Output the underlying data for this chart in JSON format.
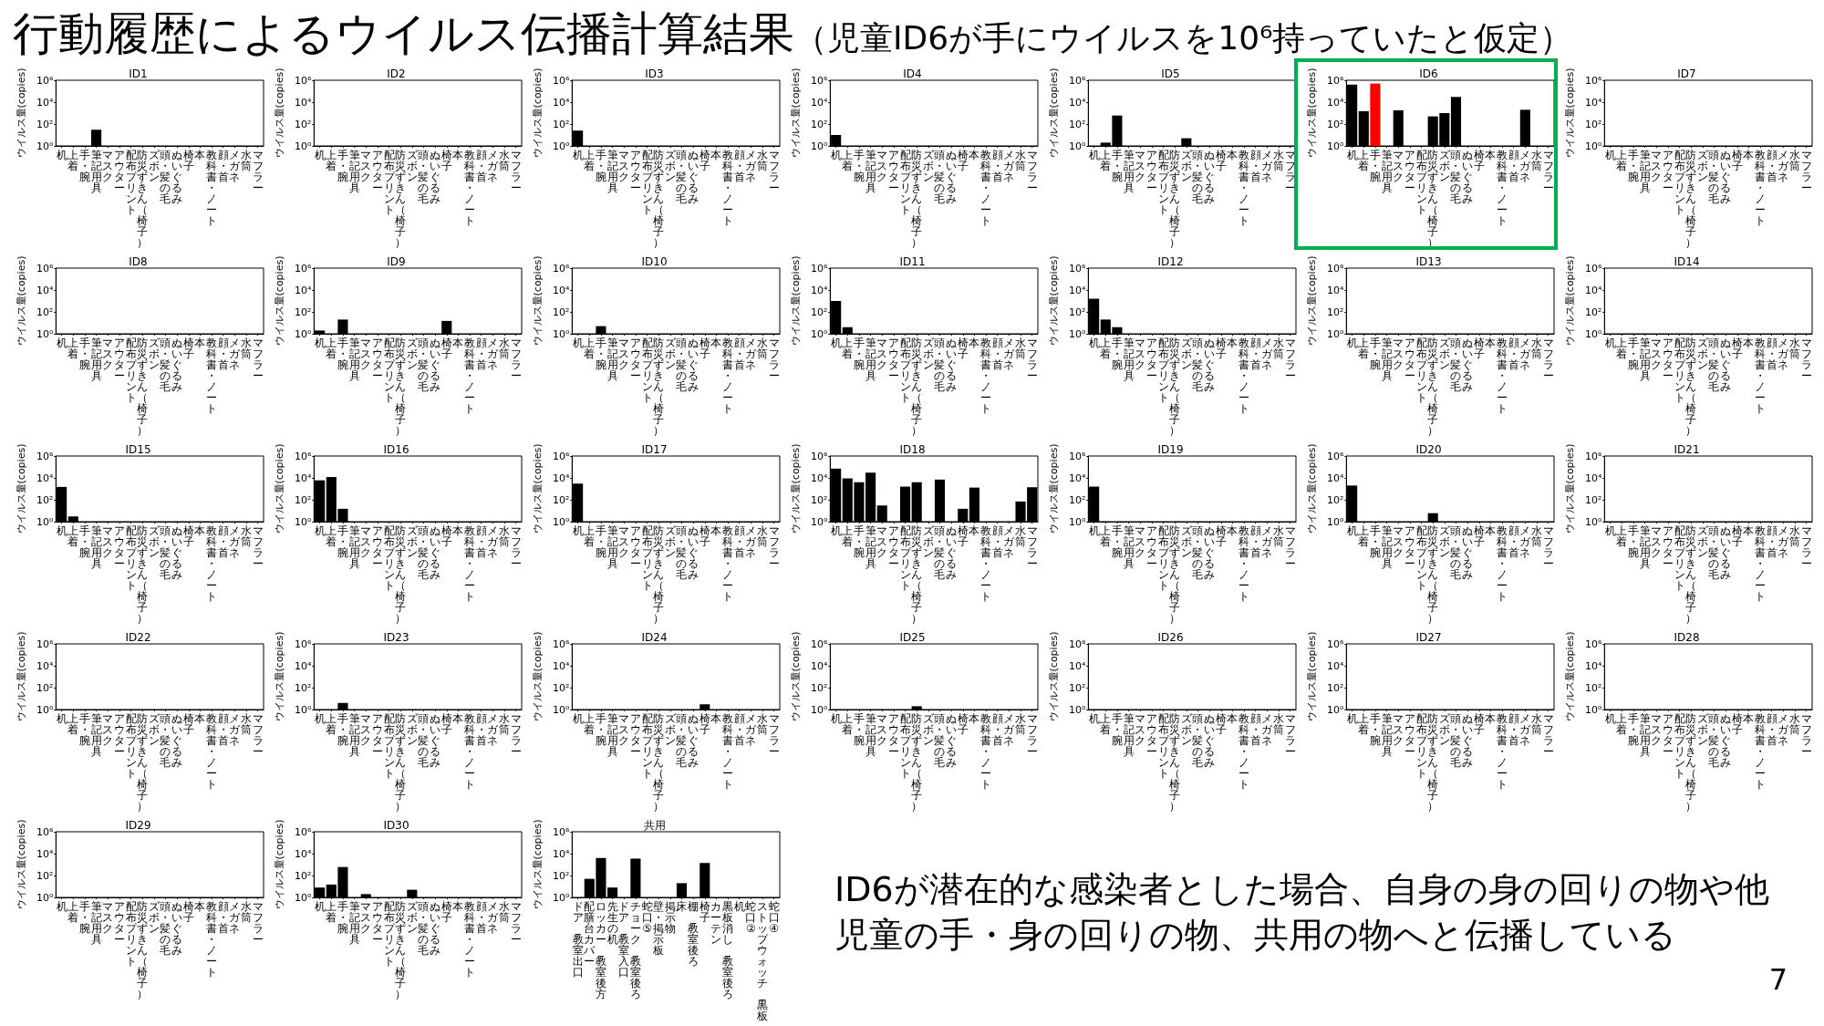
{
  "chart_data": [
    {
      "type": "other",
      "title": "行動履歴によるウイルス伝播計算結果",
      "subtitle": "（児童ID6が手にウイルスを10⁶持っていたと仮定）",
      "annotations": [
        "ID6が潜在的な感染者とした場合、自身の身の回りの物や他児童の手・身の回りの物、共用の物へと伝播している",
        "7"
      ]
    },
    {
      "type": "bar",
      "title": "ID1",
      "ylabel": "ウイルス量(copies)",
      "log": true,
      "color": "#000000",
      "ylim": [
        1,
        1000000
      ],
      "yticks": [
        {
          "value": 1,
          "label": "10⁰"
        },
        {
          "value": 100,
          "label": "10²"
        },
        {
          "value": 10000,
          "label": "10⁴"
        },
        {
          "value": 1000000,
          "label": "10⁶"
        }
      ],
      "categories": [
        "机",
        "上着",
        "手・腕",
        "筆記用具",
        "マスク",
        "アウター",
        "配布プリント",
        "防災ずきん（椅子）",
        "ズボン",
        "頭・髪の毛",
        "ぬいぐるみ",
        "椅子",
        "本",
        "教科書・ノート",
        "顔・首",
        "メガネ",
        "水筒",
        "マフラー"
      ],
      "values": [
        null,
        null,
        null,
        30,
        null,
        null,
        null,
        null,
        null,
        null,
        null,
        null,
        null,
        null,
        null,
        null,
        null,
        null
      ]
    },
    {
      "type": "bar",
      "title": "ID2",
      "ylabel": "ウイルス量(copies)",
      "log": true,
      "color": "#000000",
      "ylim": [
        1,
        1000000
      ],
      "yticks": [
        {
          "value": 1,
          "label": "10⁰"
        },
        {
          "value": 100,
          "label": "10²"
        },
        {
          "value": 10000,
          "label": "10⁴"
        },
        {
          "value": 1000000,
          "label": "10⁶"
        }
      ],
      "categories": [
        "机",
        "上着",
        "手・腕",
        "筆記用具",
        "マスク",
        "アウター",
        "配布プリント",
        "防災ずきん（椅子）",
        "ズボン",
        "頭・髪の毛",
        "ぬいぐるみ",
        "椅子",
        "本",
        "教科書・ノート",
        "顔・首",
        "メガネ",
        "水筒",
        "マフラー"
      ],
      "values": [
        null,
        null,
        null,
        null,
        null,
        null,
        null,
        null,
        null,
        null,
        null,
        null,
        null,
        null,
        null,
        null,
        null,
        null
      ]
    },
    {
      "type": "bar",
      "title": "ID3",
      "ylabel": "ウイルス量(copies)",
      "log": true,
      "color": "#000000",
      "ylim": [
        1,
        1000000
      ],
      "yticks": [
        {
          "value": 1,
          "label": "10⁰"
        },
        {
          "value": 100,
          "label": "10²"
        },
        {
          "value": 10000,
          "label": "10⁴"
        },
        {
          "value": 1000000,
          "label": "10⁶"
        }
      ],
      "categories": [
        "机",
        "上着",
        "手・腕",
        "筆記用具",
        "マスク",
        "アウター",
        "配布プリント",
        "防災ずきん（椅子）",
        "ズボン",
        "頭・髪の毛",
        "ぬいぐるみ",
        "椅子",
        "本",
        "教科書・ノート",
        "顔・首",
        "メガネ",
        "水筒",
        "マフラー"
      ],
      "values": [
        25,
        null,
        null,
        null,
        null,
        null,
        null,
        null,
        null,
        null,
        null,
        null,
        null,
        null,
        null,
        null,
        null,
        null
      ]
    },
    {
      "type": "bar",
      "title": "ID4",
      "ylabel": "ウイルス量(copies)",
      "log": true,
      "color": "#000000",
      "ylim": [
        1,
        1000000
      ],
      "yticks": [
        {
          "value": 1,
          "label": "10⁰"
        },
        {
          "value": 100,
          "label": "10²"
        },
        {
          "value": 10000,
          "label": "10⁴"
        },
        {
          "value": 1000000,
          "label": "10⁶"
        }
      ],
      "categories": [
        "机",
        "上着",
        "手・腕",
        "筆記用具",
        "マスク",
        "アウター",
        "配布プリント",
        "防災ずきん（椅子）",
        "ズボン",
        "頭・髪の毛",
        "ぬいぐるみ",
        "椅子",
        "本",
        "教科書・ノート",
        "顔・首",
        "メガネ",
        "水筒",
        "マフラー"
      ],
      "values": [
        10,
        null,
        null,
        null,
        null,
        null,
        null,
        null,
        null,
        null,
        null,
        null,
        null,
        null,
        null,
        null,
        null,
        null
      ]
    },
    {
      "type": "bar",
      "title": "ID5",
      "ylabel": "ウイルス量(copies)",
      "log": true,
      "color": "#000000",
      "ylim": [
        1,
        1000000
      ],
      "yticks": [
        {
          "value": 1,
          "label": "10⁰"
        },
        {
          "value": 100,
          "label": "10²"
        },
        {
          "value": 10000,
          "label": "10⁴"
        },
        {
          "value": 1000000,
          "label": "10⁶"
        }
      ],
      "categories": [
        "机",
        "上着",
        "手・腕",
        "筆記用具",
        "マスク",
        "アウター",
        "配布プリント",
        "防災ずきん（椅子）",
        "ズボン",
        "頭・髪の毛",
        "ぬいぐるみ",
        "椅子",
        "本",
        "教科書・ノート",
        "顔・首",
        "メガネ",
        "水筒",
        "マフラー"
      ],
      "values": [
        null,
        2,
        600,
        null,
        null,
        null,
        null,
        null,
        5,
        null,
        null,
        null,
        null,
        null,
        null,
        null,
        null,
        null
      ]
    },
    {
      "type": "bar",
      "title": "ID6",
      "ylabel": "ウイルス量(copies)",
      "log": true,
      "colors": [
        "#000000",
        "#000000",
        "#ff0000",
        "#000000",
        "#000000",
        "#000000",
        "#000000",
        "#000000",
        "#000000",
        "#000000",
        "#000000",
        "#000000",
        "#000000",
        "#000000",
        "#000000",
        "#000000",
        "#000000",
        "#000000"
      ],
      "ylim": [
        1,
        1000000
      ],
      "yticks": [
        {
          "value": 1,
          "label": "10⁰"
        },
        {
          "value": 100,
          "label": "10²"
        },
        {
          "value": 10000,
          "label": "10⁴"
        },
        {
          "value": 1000000,
          "label": "10⁶"
        }
      ],
      "categories": [
        "机",
        "上着",
        "手・腕",
        "筆記用具",
        "マスク",
        "アウター",
        "配布プリント",
        "防災ずきん（椅子）",
        "ズボン",
        "頭・髪の毛",
        "ぬいぐるみ",
        "椅子",
        "本",
        "教科書・ノート",
        "顔・首",
        "メガネ",
        "水筒",
        "マフラー"
      ],
      "values": [
        400000,
        1500,
        500000,
        null,
        1800,
        null,
        null,
        500,
        1000,
        30000,
        null,
        null,
        null,
        null,
        null,
        2000,
        null,
        null
      ]
    },
    {
      "type": "bar",
      "title": "ID7",
      "ylabel": "ウイルス量(copies)",
      "log": true,
      "color": "#000000",
      "ylim": [
        1,
        1000000
      ],
      "yticks": [
        {
          "value": 1,
          "label": "10⁰"
        },
        {
          "value": 100,
          "label": "10²"
        },
        {
          "value": 10000,
          "label": "10⁴"
        },
        {
          "value": 1000000,
          "label": "10⁶"
        }
      ],
      "categories": [
        "机",
        "上着",
        "手・腕",
        "筆記用具",
        "マスク",
        "アウター",
        "配布プリント",
        "防災ずきん（椅子）",
        "ズボン",
        "頭・髪の毛",
        "ぬいぐるみ",
        "椅子",
        "本",
        "教科書・ノート",
        "顔・首",
        "メガネ",
        "水筒",
        "マフラー"
      ],
      "values": [
        null,
        null,
        null,
        null,
        null,
        null,
        null,
        null,
        null,
        null,
        null,
        null,
        null,
        null,
        null,
        null,
        null,
        null
      ]
    },
    {
      "type": "bar",
      "title": "ID8",
      "ylabel": "ウイルス量(copies)",
      "log": true,
      "color": "#000000",
      "ylim": [
        1,
        1000000
      ],
      "yticks": [
        {
          "value": 1,
          "label": "10⁰"
        },
        {
          "value": 100,
          "label": "10²"
        },
        {
          "value": 10000,
          "label": "10⁴"
        },
        {
          "value": 1000000,
          "label": "10⁶"
        }
      ],
      "categories": [
        "机",
        "上着",
        "手・腕",
        "筆記用具",
        "マスク",
        "アウター",
        "配布プリント",
        "防災ずきん（椅子）",
        "ズボン",
        "頭・髪の毛",
        "ぬいぐるみ",
        "椅子",
        "本",
        "教科書・ノート",
        "顔・首",
        "メガネ",
        "水筒",
        "マフラー"
      ],
      "values": [
        null,
        null,
        null,
        null,
        null,
        null,
        null,
        null,
        null,
        null,
        null,
        null,
        null,
        null,
        null,
        null,
        null,
        null
      ]
    },
    {
      "type": "bar",
      "title": "ID9",
      "ylabel": "ウイルス量(copies)",
      "log": true,
      "color": "#000000",
      "ylim": [
        1,
        1000000
      ],
      "yticks": [
        {
          "value": 1,
          "label": "10⁰"
        },
        {
          "value": 100,
          "label": "10²"
        },
        {
          "value": 10000,
          "label": "10⁴"
        },
        {
          "value": 1000000,
          "label": "10⁶"
        }
      ],
      "categories": [
        "机",
        "上着",
        "手・腕",
        "筆記用具",
        "マスク",
        "アウター",
        "配布プリント",
        "防災ずきん（椅子）",
        "ズボン",
        "頭・髪の毛",
        "ぬいぐるみ",
        "椅子",
        "本",
        "教科書・ノート",
        "顔・首",
        "メガネ",
        "水筒",
        "マフラー"
      ],
      "values": [
        2,
        null,
        20,
        null,
        null,
        null,
        null,
        null,
        null,
        null,
        null,
        15,
        null,
        null,
        null,
        null,
        null,
        null
      ]
    },
    {
      "type": "bar",
      "title": "ID10",
      "ylabel": "ウイルス量(copies)",
      "log": true,
      "color": "#000000",
      "ylim": [
        1,
        1000000
      ],
      "yticks": [
        {
          "value": 1,
          "label": "10⁰"
        },
        {
          "value": 100,
          "label": "10²"
        },
        {
          "value": 10000,
          "label": "10⁴"
        },
        {
          "value": 1000000,
          "label": "10⁶"
        }
      ],
      "categories": [
        "机",
        "上着",
        "手・腕",
        "筆記用具",
        "マスク",
        "アウター",
        "配布プリント",
        "防災ずきん（椅子）",
        "ズボン",
        "頭・髪の毛",
        "ぬいぐるみ",
        "椅子",
        "本",
        "教科書・ノート",
        "顔・首",
        "メガネ",
        "水筒",
        "マフラー"
      ],
      "values": [
        null,
        null,
        5,
        null,
        null,
        null,
        null,
        null,
        null,
        null,
        null,
        null,
        null,
        null,
        null,
        null,
        null,
        null
      ]
    },
    {
      "type": "bar",
      "title": "ID11",
      "ylabel": "ウイルス量(copies)",
      "log": true,
      "color": "#000000",
      "ylim": [
        1,
        1000000
      ],
      "yticks": [
        {
          "value": 1,
          "label": "10⁰"
        },
        {
          "value": 100,
          "label": "10²"
        },
        {
          "value": 10000,
          "label": "10⁴"
        },
        {
          "value": 1000000,
          "label": "10⁶"
        }
      ],
      "categories": [
        "机",
        "上着",
        "手・腕",
        "筆記用具",
        "マスク",
        "アウター",
        "配布プリント",
        "防災ずきん（椅子）",
        "ズボン",
        "頭・髪の毛",
        "ぬいぐるみ",
        "椅子",
        "本",
        "教科書・ノート",
        "顔・首",
        "メガネ",
        "水筒",
        "マフラー"
      ],
      "values": [
        1000,
        4,
        null,
        null,
        null,
        null,
        null,
        null,
        null,
        null,
        null,
        null,
        null,
        null,
        null,
        null,
        null,
        null
      ]
    },
    {
      "type": "bar",
      "title": "ID12",
      "ylabel": "ウイルス量(copies)",
      "log": true,
      "color": "#000000",
      "ylim": [
        1,
        1000000
      ],
      "yticks": [
        {
          "value": 1,
          "label": "10⁰"
        },
        {
          "value": 100,
          "label": "10²"
        },
        {
          "value": 10000,
          "label": "10⁴"
        },
        {
          "value": 1000000,
          "label": "10⁶"
        }
      ],
      "categories": [
        "机",
        "上着",
        "手・腕",
        "筆記用具",
        "マスク",
        "アウター",
        "配布プリント",
        "防災ずきん（椅子）",
        "ズボン",
        "頭・髪の毛",
        "ぬいぐるみ",
        "椅子",
        "本",
        "教科書・ノート",
        "顔・首",
        "メガネ",
        "水筒",
        "マフラー"
      ],
      "values": [
        1600,
        20,
        4,
        null,
        null,
        null,
        null,
        null,
        null,
        null,
        null,
        null,
        null,
        null,
        null,
        null,
        null,
        null
      ]
    },
    {
      "type": "bar",
      "title": "ID13",
      "ylabel": "ウイルス量(copies)",
      "log": true,
      "color": "#000000",
      "ylim": [
        1,
        1000000
      ],
      "yticks": [
        {
          "value": 1,
          "label": "10⁰"
        },
        {
          "value": 100,
          "label": "10²"
        },
        {
          "value": 10000,
          "label": "10⁴"
        },
        {
          "value": 1000000,
          "label": "10⁶"
        }
      ],
      "categories": [
        "机",
        "上着",
        "手・腕",
        "筆記用具",
        "マスク",
        "アウター",
        "配布プリント",
        "防災ずきん（椅子）",
        "ズボン",
        "頭・髪の毛",
        "ぬいぐるみ",
        "椅子",
        "本",
        "教科書・ノート",
        "顔・首",
        "メガネ",
        "水筒",
        "マフラー"
      ],
      "values": [
        null,
        null,
        null,
        null,
        null,
        null,
        null,
        null,
        null,
        null,
        null,
        null,
        null,
        null,
        null,
        null,
        null,
        null
      ]
    },
    {
      "type": "bar",
      "title": "ID14",
      "ylabel": "ウイルス量(copies)",
      "log": true,
      "color": "#000000",
      "ylim": [
        1,
        1000000
      ],
      "yticks": [
        {
          "value": 1,
          "label": "10⁰"
        },
        {
          "value": 100,
          "label": "10²"
        },
        {
          "value": 10000,
          "label": "10⁴"
        },
        {
          "value": 1000000,
          "label": "10⁶"
        }
      ],
      "categories": [
        "机",
        "上着",
        "手・腕",
        "筆記用具",
        "マスク",
        "アウター",
        "配布プリント",
        "防災ずきん（椅子）",
        "ズボン",
        "頭・髪の毛",
        "ぬいぐるみ",
        "椅子",
        "本",
        "教科書・ノート",
        "顔・首",
        "メガネ",
        "水筒",
        "マフラー"
      ],
      "values": [
        null,
        null,
        null,
        null,
        null,
        null,
        null,
        null,
        null,
        null,
        null,
        null,
        null,
        null,
        null,
        null,
        null,
        null
      ]
    },
    {
      "type": "bar",
      "title": "ID15",
      "ylabel": "ウイルス量(copies)",
      "log": true,
      "color": "#000000",
      "ylim": [
        1,
        1000000
      ],
      "yticks": [
        {
          "value": 1,
          "label": "10⁰"
        },
        {
          "value": 100,
          "label": "10²"
        },
        {
          "value": 10000,
          "label": "10⁴"
        },
        {
          "value": 1000000,
          "label": "10⁶"
        }
      ],
      "categories": [
        "机",
        "上着",
        "手・腕",
        "筆記用具",
        "マスク",
        "アウター",
        "配布プリント",
        "防災ずきん（椅子）",
        "ズボン",
        "頭・髪の毛",
        "ぬいぐるみ",
        "椅子",
        "本",
        "教科書・ノート",
        "顔・首",
        "メガネ",
        "水筒",
        "マフラー"
      ],
      "values": [
        1500,
        3,
        null,
        null,
        null,
        null,
        null,
        null,
        null,
        null,
        null,
        null,
        null,
        null,
        null,
        null,
        null,
        null
      ]
    },
    {
      "type": "bar",
      "title": "ID16",
      "ylabel": "ウイルス量(copies)",
      "log": true,
      "color": "#000000",
      "ylim": [
        1,
        1000000
      ],
      "yticks": [
        {
          "value": 1,
          "label": "10⁰"
        },
        {
          "value": 100,
          "label": "10²"
        },
        {
          "value": 10000,
          "label": "10⁴"
        },
        {
          "value": 1000000,
          "label": "10⁶"
        }
      ],
      "categories": [
        "机",
        "上着",
        "手・腕",
        "筆記用具",
        "マスク",
        "アウター",
        "配布プリント",
        "防災ずきん（椅子）",
        "ズボン",
        "頭・髪の毛",
        "ぬいぐるみ",
        "椅子",
        "本",
        "教科書・ノート",
        "顔・首",
        "メガネ",
        "水筒",
        "マフラー"
      ],
      "values": [
        6000,
        12000,
        15,
        null,
        null,
        null,
        null,
        null,
        null,
        null,
        null,
        null,
        null,
        null,
        null,
        null,
        null,
        null
      ]
    },
    {
      "type": "bar",
      "title": "ID17",
      "ylabel": "ウイルス量(copies)",
      "log": true,
      "color": "#000000",
      "ylim": [
        1,
        1000000
      ],
      "yticks": [
        {
          "value": 1,
          "label": "10⁰"
        },
        {
          "value": 100,
          "label": "10²"
        },
        {
          "value": 10000,
          "label": "10⁴"
        },
        {
          "value": 1000000,
          "label": "10⁶"
        }
      ],
      "categories": [
        "机",
        "上着",
        "手・腕",
        "筆記用具",
        "マスク",
        "アウター",
        "配布プリント",
        "防災ずきん（椅子）",
        "ズボン",
        "頭・髪の毛",
        "ぬいぐるみ",
        "椅子",
        "本",
        "教科書・ノート",
        "顔・首",
        "メガネ",
        "水筒",
        "マフラー"
      ],
      "values": [
        3000,
        null,
        null,
        null,
        null,
        null,
        null,
        null,
        null,
        null,
        null,
        null,
        null,
        null,
        null,
        null,
        null,
        null
      ]
    },
    {
      "type": "bar",
      "title": "ID18",
      "ylabel": "ウイルス量(copies)",
      "log": true,
      "color": "#000000",
      "ylim": [
        1,
        1000000
      ],
      "yticks": [
        {
          "value": 1,
          "label": "10⁰"
        },
        {
          "value": 100,
          "label": "10²"
        },
        {
          "value": 10000,
          "label": "10⁴"
        },
        {
          "value": 1000000,
          "label": "10⁶"
        }
      ],
      "categories": [
        "机",
        "上着",
        "手・腕",
        "筆記用具",
        "マスク",
        "アウター",
        "配布プリント",
        "防災ずきん（椅子）",
        "ズボン",
        "頭・髪の毛",
        "ぬいぐるみ",
        "椅子",
        "本",
        "教科書・ノート",
        "顔・首",
        "メガネ",
        "水筒",
        "マフラー"
      ],
      "values": [
        70000,
        9000,
        4000,
        30000,
        30,
        null,
        1600,
        4000,
        null,
        7000,
        null,
        15,
        1300,
        null,
        null,
        null,
        70,
        1400
      ]
    },
    {
      "type": "bar",
      "title": "ID19",
      "ylabel": "ウイルス量(copies)",
      "log": true,
      "color": "#000000",
      "ylim": [
        1,
        1000000
      ],
      "yticks": [
        {
          "value": 1,
          "label": "10⁰"
        },
        {
          "value": 100,
          "label": "10²"
        },
        {
          "value": 10000,
          "label": "10⁴"
        },
        {
          "value": 1000000,
          "label": "10⁶"
        }
      ],
      "categories": [
        "机",
        "上着",
        "手・腕",
        "筆記用具",
        "マスク",
        "アウター",
        "配布プリント",
        "防災ずきん（椅子）",
        "ズボン",
        "頭・髪の毛",
        "ぬいぐるみ",
        "椅子",
        "本",
        "教科書・ノート",
        "顔・首",
        "メガネ",
        "水筒",
        "マフラー"
      ],
      "values": [
        1600,
        null,
        null,
        null,
        null,
        null,
        null,
        null,
        null,
        null,
        null,
        null,
        null,
        null,
        null,
        null,
        null,
        null
      ]
    },
    {
      "type": "bar",
      "title": "ID20",
      "ylabel": "ウイルス量(copies)",
      "log": true,
      "color": "#000000",
      "ylim": [
        1,
        1000000
      ],
      "yticks": [
        {
          "value": 1,
          "label": "10⁰"
        },
        {
          "value": 100,
          "label": "10²"
        },
        {
          "value": 10000,
          "label": "10⁴"
        },
        {
          "value": 1000000,
          "label": "10⁶"
        }
      ],
      "categories": [
        "机",
        "上着",
        "手・腕",
        "筆記用具",
        "マスク",
        "アウター",
        "配布プリント",
        "防災ずきん（椅子）",
        "ズボン",
        "頭・髪の毛",
        "ぬいぐるみ",
        "椅子",
        "本",
        "教科書・ノート",
        "顔・首",
        "メガネ",
        "水筒",
        "マフラー"
      ],
      "values": [
        2000,
        null,
        null,
        null,
        null,
        null,
        null,
        6,
        null,
        null,
        null,
        null,
        null,
        null,
        null,
        null,
        null,
        null
      ]
    },
    {
      "type": "bar",
      "title": "ID21",
      "ylabel": "ウイルス量(copies)",
      "log": true,
      "color": "#000000",
      "ylim": [
        1,
        1000000
      ],
      "yticks": [
        {
          "value": 1,
          "label": "10⁰"
        },
        {
          "value": 100,
          "label": "10²"
        },
        {
          "value": 10000,
          "label": "10⁴"
        },
        {
          "value": 1000000,
          "label": "10⁶"
        }
      ],
      "categories": [
        "机",
        "上着",
        "手・腕",
        "筆記用具",
        "マスク",
        "アウター",
        "配布プリント",
        "防災ずきん（椅子）",
        "ズボン",
        "頭・髪の毛",
        "ぬいぐるみ",
        "椅子",
        "本",
        "教科書・ノート",
        "顔・首",
        "メガネ",
        "水筒",
        "マフラー"
      ],
      "values": [
        null,
        null,
        null,
        null,
        null,
        null,
        null,
        null,
        null,
        null,
        null,
        null,
        null,
        null,
        null,
        null,
        null,
        null
      ]
    },
    {
      "type": "bar",
      "title": "ID22",
      "ylabel": "ウイルス量(copies)",
      "log": true,
      "color": "#000000",
      "ylim": [
        1,
        1000000
      ],
      "yticks": [
        {
          "value": 1,
          "label": "10⁰"
        },
        {
          "value": 100,
          "label": "10²"
        },
        {
          "value": 10000,
          "label": "10⁴"
        },
        {
          "value": 1000000,
          "label": "10⁶"
        }
      ],
      "categories": [
        "机",
        "上着",
        "手・腕",
        "筆記用具",
        "マスク",
        "アウター",
        "配布プリント",
        "防災ずきん（椅子）",
        "ズボン",
        "頭・髪の毛",
        "ぬいぐるみ",
        "椅子",
        "本",
        "教科書・ノート",
        "顔・首",
        "メガネ",
        "水筒",
        "マフラー"
      ],
      "values": [
        null,
        null,
        null,
        null,
        null,
        null,
        null,
        null,
        null,
        null,
        null,
        null,
        null,
        null,
        null,
        null,
        null,
        null
      ]
    },
    {
      "type": "bar",
      "title": "ID23",
      "ylabel": "ウイルス量(copies)",
      "log": true,
      "color": "#000000",
      "ylim": [
        1,
        1000000
      ],
      "yticks": [
        {
          "value": 1,
          "label": "10⁰"
        },
        {
          "value": 100,
          "label": "10²"
        },
        {
          "value": 10000,
          "label": "10⁴"
        },
        {
          "value": 1000000,
          "label": "10⁶"
        }
      ],
      "categories": [
        "机",
        "上着",
        "手・腕",
        "筆記用具",
        "マスク",
        "アウター",
        "配布プリント",
        "防災ずきん（椅子）",
        "ズボン",
        "頭・髪の毛",
        "ぬいぐるみ",
        "椅子",
        "本",
        "教科書・ノート",
        "顔・首",
        "メガネ",
        "水筒",
        "マフラー"
      ],
      "values": [
        null,
        null,
        4,
        null,
        null,
        null,
        null,
        null,
        null,
        null,
        null,
        null,
        null,
        null,
        null,
        null,
        null,
        null
      ]
    },
    {
      "type": "bar",
      "title": "ID24",
      "ylabel": "ウイルス量(copies)",
      "log": true,
      "color": "#000000",
      "ylim": [
        1,
        1000000
      ],
      "yticks": [
        {
          "value": 1,
          "label": "10⁰"
        },
        {
          "value": 100,
          "label": "10²"
        },
        {
          "value": 10000,
          "label": "10⁴"
        },
        {
          "value": 1000000,
          "label": "10⁶"
        }
      ],
      "categories": [
        "机",
        "上着",
        "手・腕",
        "筆記用具",
        "マスク",
        "アウター",
        "配布プリント",
        "防災ずきん（椅子）",
        "ズボン",
        "頭・髪の毛",
        "ぬいぐるみ",
        "椅子",
        "本",
        "教科書・ノート",
        "顔・首",
        "メガネ",
        "水筒",
        "マフラー"
      ],
      "values": [
        null,
        null,
        null,
        null,
        null,
        null,
        null,
        null,
        null,
        null,
        null,
        3,
        null,
        null,
        null,
        null,
        null,
        null
      ]
    },
    {
      "type": "bar",
      "title": "ID25",
      "ylabel": "ウイルス量(copies)",
      "log": true,
      "color": "#000000",
      "ylim": [
        1,
        1000000
      ],
      "yticks": [
        {
          "value": 1,
          "label": "10⁰"
        },
        {
          "value": 100,
          "label": "10²"
        },
        {
          "value": 10000,
          "label": "10⁴"
        },
        {
          "value": 1000000,
          "label": "10⁶"
        }
      ],
      "categories": [
        "机",
        "上着",
        "手・腕",
        "筆記用具",
        "マスク",
        "アウター",
        "配布プリント",
        "防災ずきん（椅子）",
        "ズボン",
        "頭・髪の毛",
        "ぬいぐるみ",
        "椅子",
        "本",
        "教科書・ノート",
        "顔・首",
        "メガネ",
        "水筒",
        "マフラー"
      ],
      "values": [
        null,
        null,
        null,
        null,
        null,
        null,
        null,
        2,
        null,
        null,
        null,
        null,
        null,
        null,
        null,
        null,
        null,
        null
      ]
    },
    {
      "type": "bar",
      "title": "ID26",
      "ylabel": "ウイルス量(copies)",
      "log": true,
      "color": "#000000",
      "ylim": [
        1,
        1000000
      ],
      "yticks": [
        {
          "value": 1,
          "label": "10⁰"
        },
        {
          "value": 100,
          "label": "10²"
        },
        {
          "value": 10000,
          "label": "10⁴"
        },
        {
          "value": 1000000,
          "label": "10⁶"
        }
      ],
      "categories": [
        "机",
        "上着",
        "手・腕",
        "筆記用具",
        "マスク",
        "アウター",
        "配布プリント",
        "防災ずきん（椅子）",
        "ズボン",
        "頭・髪の毛",
        "ぬいぐるみ",
        "椅子",
        "本",
        "教科書・ノート",
        "顔・首",
        "メガネ",
        "水筒",
        "マフラー"
      ],
      "values": [
        null,
        null,
        null,
        null,
        null,
        null,
        null,
        null,
        null,
        null,
        null,
        null,
        null,
        null,
        null,
        null,
        null,
        null
      ]
    },
    {
      "type": "bar",
      "title": "ID27",
      "ylabel": "ウイルス量(copies)",
      "log": true,
      "color": "#000000",
      "ylim": [
        1,
        1000000
      ],
      "yticks": [
        {
          "value": 1,
          "label": "10⁰"
        },
        {
          "value": 100,
          "label": "10²"
        },
        {
          "value": 10000,
          "label": "10⁴"
        },
        {
          "value": 1000000,
          "label": "10⁶"
        }
      ],
      "categories": [
        "机",
        "上着",
        "手・腕",
        "筆記用具",
        "マスク",
        "アウター",
        "配布プリント",
        "防災ずきん（椅子）",
        "ズボン",
        "頭・髪の毛",
        "ぬいぐるみ",
        "椅子",
        "本",
        "教科書・ノート",
        "顔・首",
        "メガネ",
        "水筒",
        "マフラー"
      ],
      "values": [
        null,
        null,
        null,
        null,
        null,
        null,
        null,
        null,
        null,
        null,
        null,
        null,
        null,
        null,
        null,
        null,
        null,
        null
      ]
    },
    {
      "type": "bar",
      "title": "ID28",
      "ylabel": "ウイルス量(copies)",
      "log": true,
      "color": "#000000",
      "ylim": [
        1,
        1000000
      ],
      "yticks": [
        {
          "value": 1,
          "label": "10⁰"
        },
        {
          "value": 100,
          "label": "10²"
        },
        {
          "value": 10000,
          "label": "10⁴"
        },
        {
          "value": 1000000,
          "label": "10⁶"
        }
      ],
      "categories": [
        "机",
        "上着",
        "手・腕",
        "筆記用具",
        "マスク",
        "アウター",
        "配布プリント",
        "防災ずきん（椅子）",
        "ズボン",
        "頭・髪の毛",
        "ぬいぐるみ",
        "椅子",
        "本",
        "教科書・ノート",
        "顔・首",
        "メガネ",
        "水筒",
        "マフラー"
      ],
      "values": [
        null,
        null,
        null,
        null,
        null,
        null,
        null,
        null,
        null,
        null,
        null,
        null,
        null,
        null,
        null,
        null,
        null,
        null
      ]
    },
    {
      "type": "bar",
      "title": "ID29",
      "ylabel": "ウイルス量(copies)",
      "log": true,
      "color": "#000000",
      "ylim": [
        1,
        1000000
      ],
      "yticks": [
        {
          "value": 1,
          "label": "10⁰"
        },
        {
          "value": 100,
          "label": "10²"
        },
        {
          "value": 10000,
          "label": "10⁴"
        },
        {
          "value": 1000000,
          "label": "10⁶"
        }
      ],
      "categories": [
        "机",
        "上着",
        "手・腕",
        "筆記用具",
        "マスク",
        "アウター",
        "配布プリント",
        "防災ずきん（椅子）",
        "ズボン",
        "頭・髪の毛",
        "ぬいぐるみ",
        "椅子",
        "本",
        "教科書・ノート",
        "顔・首",
        "メガネ",
        "水筒",
        "マフラー"
      ],
      "values": [
        null,
        null,
        null,
        null,
        null,
        null,
        null,
        null,
        null,
        null,
        null,
        null,
        null,
        null,
        null,
        null,
        null,
        null
      ]
    },
    {
      "type": "bar",
      "title": "ID30",
      "ylabel": "ウイルス量(copies)",
      "log": true,
      "color": "#000000",
      "ylim": [
        1,
        1000000
      ],
      "yticks": [
        {
          "value": 1,
          "label": "10⁰"
        },
        {
          "value": 100,
          "label": "10²"
        },
        {
          "value": 10000,
          "label": "10⁴"
        },
        {
          "value": 1000000,
          "label": "10⁶"
        }
      ],
      "categories": [
        "机",
        "上着",
        "手・腕",
        "筆記用具",
        "マスク",
        "アウター",
        "配布プリント",
        "防災ずきん（椅子）",
        "ズボン",
        "頭・髪の毛",
        "ぬいぐるみ",
        "椅子",
        "本",
        "教科書・ノート",
        "顔・首",
        "メガネ",
        "水筒",
        "マフラー"
      ],
      "values": [
        8,
        15,
        600,
        null,
        2,
        null,
        null,
        null,
        5,
        null,
        null,
        null,
        null,
        null,
        null,
        null,
        null,
        null
      ]
    },
    {
      "type": "bar",
      "title": "共用",
      "ylabel": "ウイルス量(copies)",
      "log": true,
      "color": "#000000",
      "ylim": [
        1,
        1000000
      ],
      "yticks": [
        {
          "value": 1,
          "label": "10⁰"
        },
        {
          "value": 100,
          "label": "10²"
        },
        {
          "value": 10000,
          "label": "10⁴"
        },
        {
          "value": 1000000,
          "label": "10⁶"
        }
      ],
      "categories": [
        "ドア_教室出口",
        "配膳台カバー",
        "ロッカー_教室後方",
        "先生の机",
        "ドア_教室入口",
        "チョーク_教室後ろ",
        "蛇口⑤",
        "壁・掲示板",
        "掲示物",
        "床",
        "棚_教室後ろ",
        "椅子",
        "カーテン",
        "黒板消し_教室後ろ",
        "机",
        "蛇口②",
        "ストップウォッチ_黒板",
        "蛇口④"
      ],
      "values": [
        null,
        50,
        4000,
        8,
        null,
        3500,
        null,
        null,
        null,
        20,
        null,
        1400,
        null,
        null,
        null,
        null,
        null,
        null
      ]
    }
  ]
}
